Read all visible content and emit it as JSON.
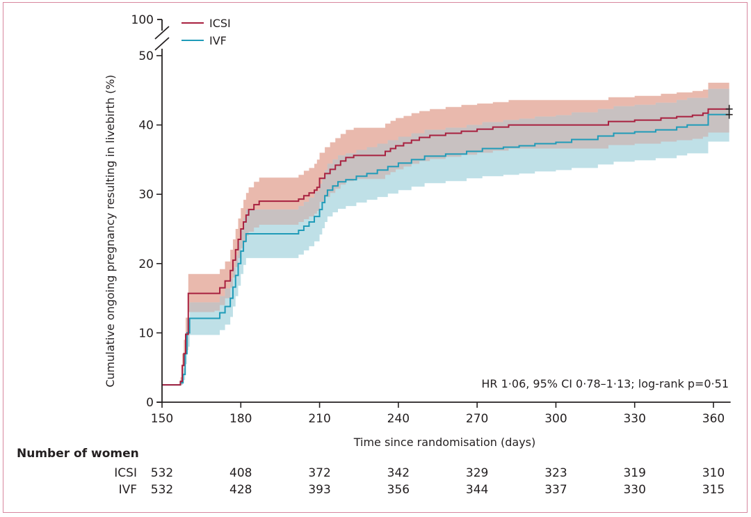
{
  "chart_data": {
    "type": "line",
    "subtype": "kaplan-meier-step",
    "title": "",
    "xlabel": "Time since randomisation (days)",
    "ylabel": "Cumulative ongoing pregnancy resulting in livebirth (%)",
    "xlim": [
      150,
      366
    ],
    "ylim": [
      0,
      50
    ],
    "y_break": {
      "above": 50,
      "label": "100"
    },
    "x_ticks": [
      150,
      180,
      210,
      240,
      270,
      300,
      330,
      360
    ],
    "y_ticks": [
      0,
      10,
      20,
      30,
      40,
      50
    ],
    "legend_position": "top-left",
    "annotation": "HR 1·06, 95% CI 0·78–1·13; log-rank p=0·51",
    "colors": {
      "ICSI": "#a8203f",
      "IVF": "#1f9bb8",
      "ICSI_ci": "#e9b9ad",
      "IVF_ci": "#bfe0e7",
      "overlap_ci": "#c8c1c1"
    },
    "series": [
      {
        "name": "ICSI",
        "x": [
          150,
          157,
          157.7,
          158.3,
          159,
          160,
          170,
          172,
          174,
          176,
          177,
          178,
          179,
          180,
          181,
          182,
          183,
          185,
          187,
          200,
          202,
          204,
          206,
          208,
          209,
          210,
          212,
          214,
          216,
          218,
          220,
          223,
          226,
          235,
          237,
          239,
          242,
          245,
          248,
          252,
          258,
          264,
          270,
          276,
          282,
          300,
          320,
          330,
          340,
          346,
          352,
          356,
          358,
          366
        ],
        "y": [
          2.5,
          3.0,
          5.3,
          7.0,
          9.8,
          15.7,
          15.7,
          16.5,
          17.5,
          19.0,
          20.5,
          22.0,
          23.5,
          25.0,
          26.0,
          27.0,
          27.8,
          28.5,
          29.0,
          29.0,
          29.3,
          29.8,
          30.2,
          30.6,
          31.0,
          32.3,
          33.0,
          33.6,
          34.2,
          34.8,
          35.3,
          35.6,
          35.6,
          36.2,
          36.6,
          37.0,
          37.4,
          37.8,
          38.2,
          38.5,
          38.8,
          39.1,
          39.4,
          39.7,
          40.0,
          40.0,
          40.5,
          40.7,
          41.0,
          41.2,
          41.4,
          41.7,
          42.3,
          42.3
        ],
        "ci_low": [
          2.5,
          2.5,
          3.8,
          5.2,
          7.5,
          13.0,
          13.2,
          14.0,
          15.0,
          16.5,
          18.0,
          19.5,
          20.8,
          22.2,
          23.0,
          24.0,
          24.6,
          25.2,
          25.6,
          25.6,
          26.0,
          26.4,
          26.8,
          27.2,
          27.6,
          28.9,
          29.6,
          30.2,
          30.8,
          31.4,
          31.9,
          32.2,
          32.2,
          32.8,
          33.2,
          33.6,
          34.0,
          34.4,
          34.8,
          35.1,
          35.4,
          35.7,
          36.0,
          36.3,
          36.6,
          36.6,
          37.1,
          37.3,
          37.6,
          37.8,
          38.0,
          38.3,
          38.9,
          38.9
        ],
        "ci_high": [
          2.5,
          3.6,
          7.0,
          9.0,
          12.2,
          18.5,
          18.5,
          19.2,
          20.3,
          22.0,
          23.5,
          25.0,
          26.5,
          28.0,
          29.2,
          30.2,
          31.0,
          31.8,
          32.4,
          32.4,
          32.8,
          33.4,
          33.8,
          34.4,
          35.0,
          36.0,
          36.8,
          37.5,
          38.1,
          38.7,
          39.3,
          39.6,
          39.6,
          40.2,
          40.6,
          41.0,
          41.3,
          41.7,
          42.0,
          42.3,
          42.6,
          42.9,
          43.1,
          43.3,
          43.6,
          43.6,
          44.0,
          44.2,
          44.5,
          44.7,
          44.9,
          45.1,
          46.1,
          46.1
        ]
      },
      {
        "name": "IVF",
        "x": [
          150,
          157,
          158,
          158.8,
          159.5,
          160.5,
          170,
          172,
          174,
          176,
          177,
          178,
          179,
          180,
          181,
          182,
          200,
          202,
          204,
          206,
          208,
          210,
          211,
          212,
          213,
          215,
          217,
          220,
          224,
          228,
          232,
          236,
          240,
          245,
          250,
          258,
          266,
          272,
          280,
          286,
          292,
          300,
          306,
          316,
          322,
          330,
          338,
          346,
          350,
          358,
          366
        ],
        "y": [
          2.5,
          2.8,
          4.0,
          7.0,
          10.0,
          12.1,
          12.1,
          12.9,
          13.8,
          15.0,
          16.6,
          18.3,
          20.0,
          21.8,
          23.2,
          24.3,
          24.3,
          24.8,
          25.4,
          26.0,
          26.8,
          27.8,
          28.8,
          29.8,
          30.6,
          31.2,
          31.8,
          32.1,
          32.6,
          33.0,
          33.5,
          34.0,
          34.5,
          35.0,
          35.5,
          35.8,
          36.2,
          36.6,
          36.8,
          37.0,
          37.3,
          37.5,
          37.9,
          38.4,
          38.8,
          39.0,
          39.3,
          39.7,
          40.0,
          41.5,
          41.5
        ],
        "ci_low": [
          2.5,
          2.5,
          3.2,
          5.5,
          8.0,
          9.7,
          9.7,
          10.4,
          11.2,
          12.3,
          13.8,
          15.3,
          16.8,
          18.5,
          19.8,
          20.8,
          20.8,
          21.3,
          21.9,
          22.5,
          23.2,
          24.2,
          25.1,
          26.0,
          26.8,
          27.4,
          27.9,
          28.3,
          28.8,
          29.2,
          29.6,
          30.1,
          30.6,
          31.1,
          31.6,
          31.9,
          32.3,
          32.6,
          32.8,
          33.0,
          33.3,
          33.5,
          33.8,
          34.3,
          34.7,
          34.9,
          35.2,
          35.6,
          35.9,
          37.6,
          37.6
        ],
        "ci_high": [
          2.5,
          3.2,
          4.9,
          8.5,
          12.0,
          14.4,
          14.4,
          15.3,
          16.4,
          17.8,
          19.4,
          21.2,
          23.2,
          25.0,
          26.6,
          27.8,
          27.8,
          28.3,
          28.9,
          29.5,
          30.4,
          31.5,
          32.5,
          33.5,
          34.4,
          35.0,
          35.6,
          35.9,
          36.4,
          36.8,
          37.3,
          37.8,
          38.3,
          38.8,
          39.3,
          39.6,
          40.0,
          40.4,
          40.7,
          40.9,
          41.2,
          41.4,
          41.8,
          42.3,
          42.7,
          42.9,
          43.2,
          43.6,
          43.9,
          45.2,
          45.2
        ]
      }
    ],
    "censor_marks": [
      {
        "series": "ICSI",
        "x": 366,
        "y": 42.3
      },
      {
        "series": "IVF",
        "x": 366,
        "y": 41.5
      }
    ],
    "risk_table": {
      "title": "Number of women",
      "times": [
        150,
        180,
        210,
        240,
        270,
        300,
        330,
        360
      ],
      "rows": [
        {
          "label": "ICSI",
          "values": [
            "532",
            "408",
            "372",
            "342",
            "329",
            "323",
            "319",
            "310"
          ]
        },
        {
          "label": "IVF",
          "values": [
            "532",
            "428",
            "393",
            "356",
            "344",
            "337",
            "330",
            "315"
          ]
        }
      ]
    }
  }
}
